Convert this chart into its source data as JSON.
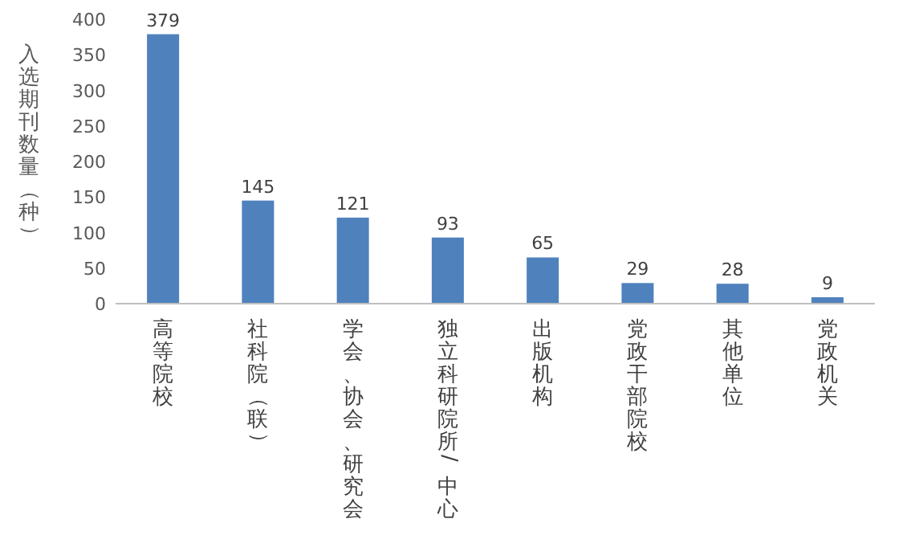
{
  "chart_data": {
    "type": "bar",
    "ylabel": "入选期刊数量（种）",
    "categories": [
      "高等院校",
      "社科院（联）",
      "学会、协会、研究会",
      "独立科研院所/中心",
      "出版机构",
      "党政干部院校",
      "其他单位",
      "党政机关"
    ],
    "values": [
      379,
      145,
      121,
      93,
      65,
      29,
      28,
      9
    ],
    "color": "#4f81bd",
    "ylim": [
      0,
      400
    ],
    "yticks": [
      0,
      50,
      100,
      150,
      200,
      250,
      300,
      350,
      400
    ],
    "data_labels": true,
    "grid": false
  }
}
